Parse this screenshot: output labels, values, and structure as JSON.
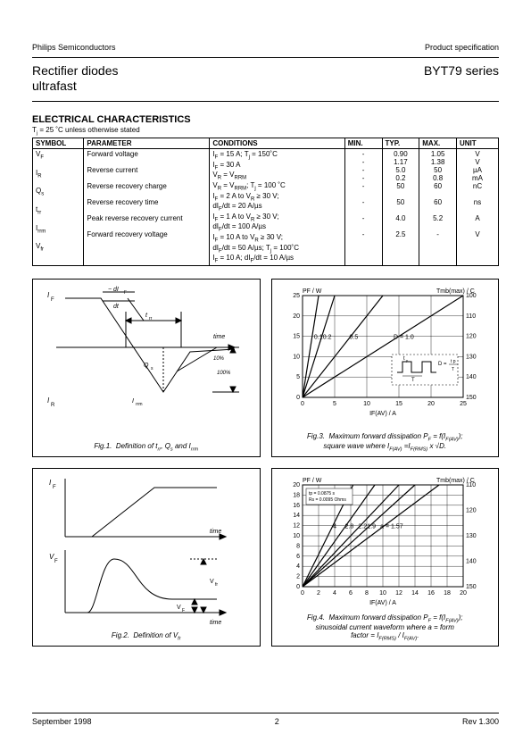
{
  "header": {
    "company": "Philips Semiconductors",
    "doctype": "Product specification"
  },
  "title": {
    "name_l1": "Rectifier diodes",
    "name_l2": "ultrafast",
    "series": "BYT79 series"
  },
  "section": {
    "heading": "ELECTRICAL CHARACTERISTICS",
    "note": "Tj = 25 ˚C unless otherwise stated"
  },
  "table": {
    "headers": [
      "SYMBOL",
      "PARAMETER",
      "CONDITIONS",
      "MIN.",
      "TYP.",
      "MAX.",
      "UNIT"
    ],
    "col_widths_pct": [
      10,
      26,
      30,
      7,
      7,
      7,
      7
    ],
    "rows": [
      {
        "sym": "V_F",
        "param": "Forward voltage",
        "cond": "I_F = 15 A; T_j = 150˚C",
        "min": "-",
        "typ": "0.90",
        "max": "1.05",
        "unit": "V"
      },
      {
        "sym": "",
        "param": "",
        "cond": "I_F = 30 A",
        "min": "-",
        "typ": "1.17",
        "max": "1.38",
        "unit": "V"
      },
      {
        "sym": "I_R",
        "param": "Reverse current",
        "cond": "V_R = V_RRM",
        "min": "-",
        "typ": "5.0",
        "max": "50",
        "unit": "µA"
      },
      {
        "sym": "",
        "param": "",
        "cond": "V_R = V_RRM; T_j = 100 ˚C",
        "min": "-",
        "typ": "0.2",
        "max": "0.8",
        "unit": "mA"
      },
      {
        "sym": "Q_s",
        "param": "Reverse recovery charge",
        "cond": "I_F = 2 A to V_R ≥ 30 V; dI_F/dt = 20 A/µs",
        "min": "-",
        "typ": "50",
        "max": "60",
        "unit": "nC"
      },
      {
        "sym": "t_rr",
        "param": "Reverse recovery time",
        "cond": "I_F = 1 A to V_R ≥ 30 V; dI_F/dt = 100 A/µs",
        "min": "-",
        "typ": "50",
        "max": "60",
        "unit": "ns"
      },
      {
        "sym": "I_rrm",
        "param": "Peak reverse recovery current",
        "cond": "I_F = 10 A to V_R ≥ 30 V; dI_F/dt = 50 A/µs; T_j = 100˚C",
        "min": "-",
        "typ": "4.0",
        "max": "5.2",
        "unit": "A"
      },
      {
        "sym": "V_fr",
        "param": "Forward recovery voltage",
        "cond": "I_F = 10 A; dI_F/dt = 10 A/µs",
        "min": "-",
        "typ": "2.5",
        "max": "-",
        "unit": "V"
      }
    ]
  },
  "figs": {
    "f1": {
      "caption": "Fig.1.   Definition of t_rr, Q_s and I_rrm",
      "labels": {
        "IF": "I F",
        "IR": "I R",
        "dIdt": "dI F / dt",
        "trr": "t rr",
        "Qs": "Q s",
        "Irrm": "I rrm",
        "time": "time",
        "p10": "10%",
        "p100": "100%"
      }
    },
    "f2": {
      "caption": "Fig.2.   Definition of V_fr",
      "labels": {
        "IF": "I F",
        "VF": "V F",
        "time": "time",
        "Vfr": "V fr",
        "VFs": "V F"
      }
    },
    "f3": {
      "caption": "Fig.3.   Maximum forward dissipation P_F = f(I_F(AV)); square wave where I_F(AV) = I_F(RMS) x √D.",
      "xlabel": "IF(AV) / A",
      "ylabel_l": "PF / W",
      "ylabel_r": "Tmb(max) / C",
      "xlim": [
        0,
        25
      ],
      "ylim_l": [
        0,
        25
      ],
      "ylim_r": [
        100,
        150
      ],
      "xticks": [
        0,
        5,
        10,
        15,
        20,
        25
      ],
      "yticks_l": [
        0,
        5,
        10,
        15,
        20,
        25
      ],
      "yticks_r": [
        100,
        110,
        120,
        130,
        140,
        150
      ],
      "series": [
        {
          "label": "0.1",
          "pts": [
            [
              0,
              0
            ],
            [
              2.5,
              25
            ]
          ]
        },
        {
          "label": "0.2",
          "pts": [
            [
              0,
              0
            ],
            [
              5,
              25
            ]
          ]
        },
        {
          "label": "0.5",
          "pts": [
            [
              0,
              0
            ],
            [
              12.5,
              25
            ]
          ]
        },
        {
          "label": "D = 1.0",
          "pts": [
            [
              0,
              0
            ],
            [
              25,
              25
            ]
          ]
        }
      ],
      "inset": {
        "labels": [
          "t_p",
          "T",
          "D = t_p / T"
        ]
      },
      "color": "#000000",
      "grid_color": "#000000",
      "bg": "#ffffff",
      "line_w": 1
    },
    "f4": {
      "caption": "Fig.4.   Maximum forward dissipation P_F = f(I_F(AV)); sinusoidal current waveform where a = form factor = I_F(RMS) / I_F(AV).",
      "xlabel": "IF(AV) / A",
      "ylabel_l": "PF / W",
      "ylabel_r": "Tmb(max) / C",
      "xlim": [
        0,
        20
      ],
      "ylim_l": [
        0,
        20
      ],
      "ylim_r": [
        110,
        150
      ],
      "xticks": [
        0,
        2,
        4,
        6,
        8,
        10,
        12,
        14,
        16,
        18,
        20
      ],
      "yticks_l": [
        0,
        2,
        4,
        6,
        8,
        10,
        12,
        14,
        16,
        18,
        20
      ],
      "yticks_r": [
        110,
        120,
        130,
        140,
        150
      ],
      "series": [
        {
          "label": "a = 1.57",
          "pts": [
            [
              0,
              0
            ],
            [
              17,
              20
            ]
          ]
        },
        {
          "label": "1.9",
          "pts": [
            [
              0,
              0
            ],
            [
              14,
              20
            ]
          ]
        },
        {
          "label": "2.2",
          "pts": [
            [
              0,
              0
            ],
            [
              12,
              20
            ]
          ]
        },
        {
          "label": "2.8",
          "pts": [
            [
              0,
              0
            ],
            [
              9,
              20
            ]
          ]
        },
        {
          "label": "4",
          "pts": [
            [
              0,
              0
            ],
            [
              6.3,
              20
            ]
          ]
        }
      ],
      "note_box": [
        "tp = 0.0875 s",
        "Rs = 0.0095 Ohms"
      ],
      "color": "#000000",
      "grid_color": "#000000",
      "bg": "#ffffff",
      "line_w": 1
    }
  },
  "footer": {
    "date": "September 1998",
    "page": "2",
    "rev": "Rev 1.300"
  }
}
